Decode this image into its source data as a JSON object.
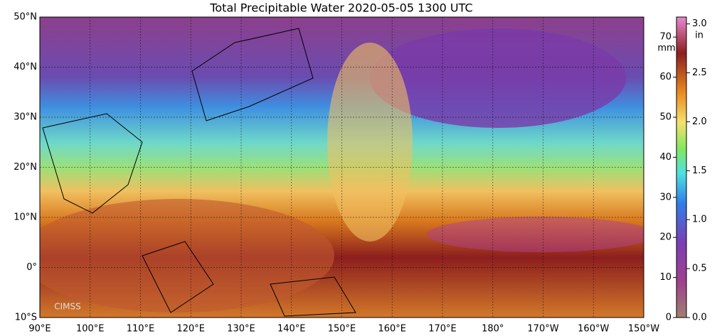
{
  "map": {
    "title": "Total Precipitable Water  2020-05-05 1300 UTC",
    "lon_lim": [
      90,
      210
    ],
    "lon_ticks": [
      {
        "value": 90,
        "label": "90°E"
      },
      {
        "value": 100,
        "label": "100°E"
      },
      {
        "value": 110,
        "label": "110°E"
      },
      {
        "value": 120,
        "label": "120°E"
      },
      {
        "value": 130,
        "label": "130°E"
      },
      {
        "value": 140,
        "label": "140°E"
      },
      {
        "value": 150,
        "label": "150°E"
      },
      {
        "value": 160,
        "label": "160°E"
      },
      {
        "value": 170,
        "label": "170°E"
      },
      {
        "value": 180,
        "label": "180°"
      },
      {
        "value": 190,
        "label": "170°W"
      },
      {
        "value": 200,
        "label": "160°W"
      },
      {
        "value": 210,
        "label": "150°W"
      }
    ],
    "lat_lim": [
      -10,
      50
    ],
    "lat_ticks": [
      {
        "value": -10,
        "label": "10°S"
      },
      {
        "value": 0,
        "label": "0°"
      },
      {
        "value": 10,
        "label": "10°N"
      },
      {
        "value": 20,
        "label": "20°N"
      },
      {
        "value": 30,
        "label": "30°N"
      },
      {
        "value": 40,
        "label": "40°N"
      },
      {
        "value": 50,
        "label": "50°N"
      }
    ],
    "watermark": "CIMSS",
    "colorbar": {
      "mm_unit": "mm",
      "in_unit": "in",
      "mm_lim": [
        0,
        75
      ],
      "mm_ticks": [
        0,
        10,
        20,
        30,
        40,
        50,
        60,
        70
      ],
      "in_lim": [
        0,
        3.07
      ],
      "in_ticks": [
        {
          "value": 0,
          "label": "0.0"
        },
        {
          "value": 0.5,
          "label": "0.5"
        },
        {
          "value": 1,
          "label": "1.0"
        },
        {
          "value": 1.5,
          "label": "1.5"
        },
        {
          "value": 2,
          "label": "2.0"
        },
        {
          "value": 2.5,
          "label": "2.5"
        },
        {
          "value": 3,
          "label": "3.0"
        }
      ]
    }
  }
}
